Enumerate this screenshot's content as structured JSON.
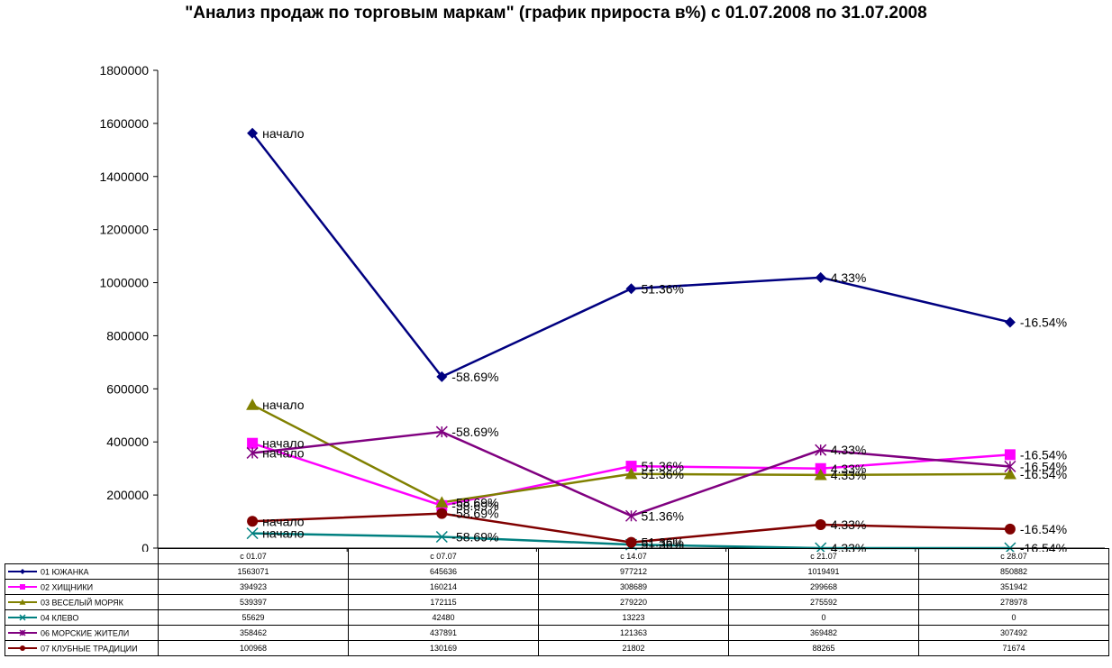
{
  "chart_data": {
    "type": "line",
    "title": "\"Анализ продаж по торговым маркам\" (график прироста в%) с 01.07.2008 по 31.07.2008",
    "categories": [
      "с 01.07",
      "с 07.07",
      "с 14.07",
      "с 21.07",
      "с 28.07"
    ],
    "ylim": [
      0,
      1800000
    ],
    "y_ticks": [
      "1800000",
      "1600000",
      "1400000",
      "1200000",
      "1000000",
      "800000",
      "600000",
      "400000",
      "200000",
      "0"
    ],
    "grid": false,
    "legend": "data-table",
    "point_labels": [
      "начало",
      "-58.69%",
      "51.36%",
      "4.33%",
      "-16.54%"
    ],
    "series": [
      {
        "name": "01 ЮЖАНКА",
        "color": "#000080",
        "marker": "diamond",
        "values": [
          1563071,
          645636,
          977212,
          1019491,
          850882
        ]
      },
      {
        "name": "02 ХИЩНИКИ",
        "color": "#ff00ff",
        "marker": "square",
        "values": [
          394923,
          160214,
          308689,
          299668,
          351942
        ]
      },
      {
        "name": "03 ВЕСЕЛЫЙ МОРЯК",
        "color": "#808000",
        "marker": "triangle",
        "values": [
          539397,
          172115,
          279220,
          275592,
          278978
        ]
      },
      {
        "name": "04 КЛЕВО",
        "color": "#008080",
        "marker": "x",
        "values": [
          55629,
          42480,
          13223,
          0,
          0
        ]
      },
      {
        "name": "06 МОРСКИЕ ЖИТЕЛИ",
        "color": "#800080",
        "marker": "star",
        "values": [
          358462,
          437891,
          121363,
          369482,
          307492
        ]
      },
      {
        "name": "07 КЛУБНЫЕ ТРАДИЦИИ",
        "color": "#800000",
        "marker": "circle",
        "values": [
          100968,
          130169,
          21802,
          88265,
          71674
        ]
      }
    ]
  }
}
